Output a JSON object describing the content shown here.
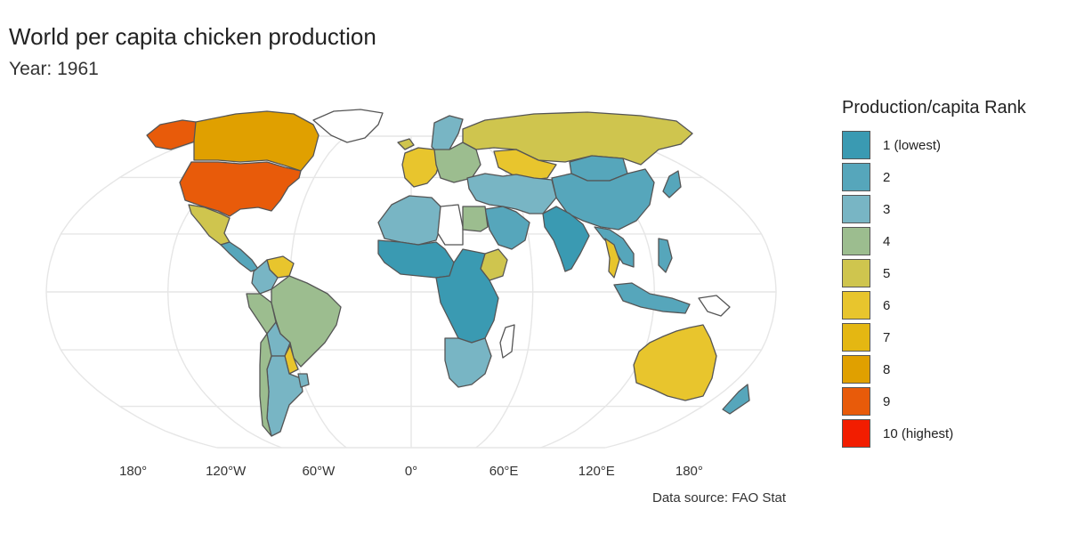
{
  "title": "World per capita chicken production",
  "subtitle": "Year: 1961",
  "source": "Data source: FAO Stat",
  "map": {
    "projection": "robinson",
    "graticule": true,
    "axis_ticks": [
      "180°",
      "120°W",
      "60°W",
      "0°",
      "60°E",
      "120°E",
      "180°"
    ]
  },
  "legend": {
    "title": "Production/capita Rank",
    "items": [
      {
        "label": "1 (lowest)",
        "color": "#3a9ab2"
      },
      {
        "label": "2",
        "color": "#56a6bb"
      },
      {
        "label": "3",
        "color": "#78b5c4"
      },
      {
        "label": "4",
        "color": "#9cbd8f"
      },
      {
        "label": "5",
        "color": "#cfc54e"
      },
      {
        "label": "6",
        "color": "#e8c52d"
      },
      {
        "label": "7",
        "color": "#e4b712"
      },
      {
        "label": "8",
        "color": "#e0a000"
      },
      {
        "label": "9",
        "color": "#e85b0a"
      },
      {
        "label": "10 (highest)",
        "color": "#f21d00"
      }
    ]
  },
  "no_data_color": "#ffffff",
  "regions": [
    {
      "name": "Alaska",
      "rank": 9
    },
    {
      "name": "Canada",
      "rank": 8
    },
    {
      "name": "United States",
      "rank": 9
    },
    {
      "name": "Mexico",
      "rank": 5
    },
    {
      "name": "Central America",
      "rank": 2
    },
    {
      "name": "Venezuela",
      "rank": 6
    },
    {
      "name": "Colombia",
      "rank": 3
    },
    {
      "name": "Peru",
      "rank": 4
    },
    {
      "name": "Brazil",
      "rank": 4
    },
    {
      "name": "Bolivia",
      "rank": 3
    },
    {
      "name": "Paraguay",
      "rank": 6
    },
    {
      "name": "Argentina",
      "rank": 3
    },
    {
      "name": "Chile",
      "rank": 4
    },
    {
      "name": "Uruguay",
      "rank": 3
    },
    {
      "name": "Greenland",
      "rank": null
    },
    {
      "name": "Iceland",
      "rank": 5
    },
    {
      "name": "Scandinavia",
      "rank": 3
    },
    {
      "name": "Western Europe",
      "rank": 6
    },
    {
      "name": "Eastern Europe",
      "rank": 4
    },
    {
      "name": "USSR",
      "rank": 5
    },
    {
      "name": "Kazakhstan",
      "rank": 6
    },
    {
      "name": "Mongolia",
      "rank": 2
    },
    {
      "name": "China",
      "rank": 2
    },
    {
      "name": "India",
      "rank": 1
    },
    {
      "name": "Middle East",
      "rank": 3
    },
    {
      "name": "Arabian Peninsula",
      "rank": 2
    },
    {
      "name": "North Africa",
      "rank": 3
    },
    {
      "name": "Libya",
      "rank": null
    },
    {
      "name": "Egypt",
      "rank": 4
    },
    {
      "name": "West Africa",
      "rank": 1
    },
    {
      "name": "Ethiopia",
      "rank": 5
    },
    {
      "name": "Central Africa",
      "rank": 1
    },
    {
      "name": "Southern Africa",
      "rank": 3
    },
    {
      "name": "Madagascar",
      "rank": null
    },
    {
      "name": "Southeast Asia",
      "rank": 2
    },
    {
      "name": "Thailand",
      "rank": 6
    },
    {
      "name": "Japan",
      "rank": 2
    },
    {
      "name": "Indonesia",
      "rank": 2
    },
    {
      "name": "Philippines",
      "rank": 2
    },
    {
      "name": "Papua New Guinea",
      "rank": null
    },
    {
      "name": "Australia",
      "rank": 6
    },
    {
      "name": "New Zealand",
      "rank": 2
    }
  ]
}
